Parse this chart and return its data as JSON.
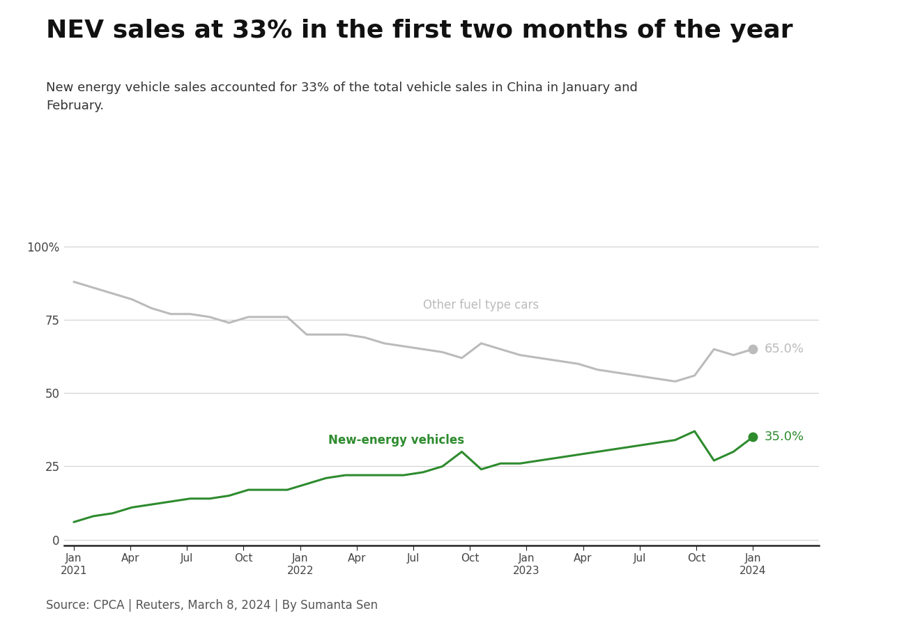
{
  "title": "NEV sales at 33% in the first two months of the year",
  "subtitle": "New energy vehicle sales accounted for 33% of the total vehicle sales in China in January and\nFebruary.",
  "source": "Source: CPCA | Reuters, March 8, 2024 | By Sumanta Sen",
  "background_color": "#ffffff",
  "title_fontsize": 26,
  "subtitle_fontsize": 13,
  "source_fontsize": 12,
  "x_labels": [
    "Jan\n2021",
    "Apr",
    "Jul",
    "Oct",
    "Jan\n2022",
    "Apr",
    "Jul",
    "Oct",
    "Jan\n2023",
    "Apr",
    "Jul",
    "Oct",
    "Jan\n2024"
  ],
  "x_positions": [
    0,
    3,
    6,
    9,
    12,
    15,
    18,
    21,
    24,
    27,
    30,
    33,
    36
  ],
  "other_fuel_label": "Other fuel type cars",
  "nev_label": "New-energy vehicles",
  "other_fuel_color": "#bbbbbb",
  "nev_color": "#2e8b2e",
  "other_fuel_end_label": "65.0%",
  "nev_end_label": "35.0%",
  "other_fuel_data": [
    88,
    86,
    84,
    82,
    79,
    77,
    77,
    76,
    74,
    76,
    76,
    76,
    70,
    70,
    70,
    69,
    67,
    66,
    65,
    64,
    62,
    67,
    65,
    63,
    62,
    61,
    60,
    58,
    57,
    56,
    55,
    54,
    56,
    65,
    63,
    65
  ],
  "nev_data": [
    6,
    8,
    9,
    11,
    12,
    13,
    14,
    14,
    15,
    17,
    17,
    17,
    19,
    21,
    22,
    22,
    22,
    22,
    23,
    25,
    30,
    24,
    26,
    26,
    27,
    28,
    29,
    30,
    31,
    32,
    33,
    34,
    37,
    27,
    30,
    35
  ],
  "ylim": [
    -2,
    105
  ],
  "yticks": [
    0,
    25,
    50,
    75,
    100
  ],
  "ytick_labels": [
    "0",
    "25",
    "50",
    "75",
    "100%"
  ],
  "line_width": 2.2,
  "grid_color": "#d0d0d0"
}
